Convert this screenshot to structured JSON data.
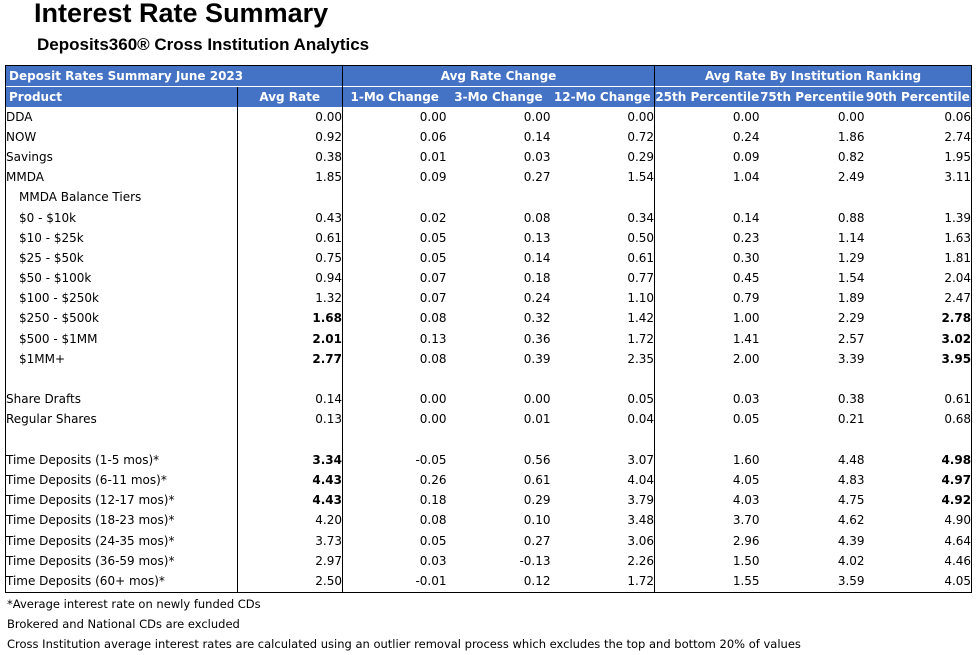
{
  "title": "Interest Rate Summary",
  "subtitle": "Deposits360® Cross Institution Analytics",
  "colors": {
    "header_bg": "#4472c4",
    "header_text": "#ffffff"
  },
  "header": {
    "group_label": "Deposit Rates Summary June 2023",
    "avg_rate_change": "Avg Rate Change",
    "avg_rate_ranking": "Avg Rate By Institution Ranking",
    "columns": [
      "Product",
      "Avg Rate",
      "1-Mo Change",
      "3-Mo Change",
      "12-Mo Change",
      "25th Percentile",
      "75th Percentile",
      "90th Percentile"
    ]
  },
  "rows": [
    {
      "label": "DDA",
      "values": [
        "0.00",
        "0.00",
        "0.00",
        "0.00",
        "0.00",
        "0.00",
        "0.06"
      ]
    },
    {
      "label": "NOW",
      "values": [
        "0.92",
        "0.06",
        "0.14",
        "0.72",
        "0.24",
        "1.86",
        "2.74"
      ]
    },
    {
      "label": "Savings",
      "values": [
        "0.38",
        "0.01",
        "0.03",
        "0.29",
        "0.09",
        "0.82",
        "1.95"
      ]
    },
    {
      "label": "MMDA",
      "values": [
        "1.85",
        "0.09",
        "0.27",
        "1.54",
        "1.04",
        "2.49",
        "3.11"
      ]
    },
    {
      "label": "MMDA Balance Tiers",
      "values": [
        "",
        "",
        "",
        "",
        "",
        "",
        ""
      ]
    },
    {
      "label": "$0 - $10k",
      "values": [
        "0.43",
        "0.02",
        "0.08",
        "0.34",
        "0.14",
        "0.88",
        "1.39"
      ]
    },
    {
      "label": "$10 - $25k",
      "values": [
        "0.61",
        "0.05",
        "0.13",
        "0.50",
        "0.23",
        "1.14",
        "1.63"
      ]
    },
    {
      "label": "$25 - $50k",
      "values": [
        "0.75",
        "0.05",
        "0.14",
        "0.61",
        "0.30",
        "1.29",
        "1.81"
      ]
    },
    {
      "label": "$50 - $100k",
      "values": [
        "0.94",
        "0.07",
        "0.18",
        "0.77",
        "0.45",
        "1.54",
        "2.04"
      ]
    },
    {
      "label": "$100 - $250k",
      "values": [
        "1.32",
        "0.07",
        "0.24",
        "1.10",
        "0.79",
        "1.89",
        "2.47"
      ]
    },
    {
      "label": "$250 - $500k",
      "values": [
        "1.68",
        "0.08",
        "0.32",
        "1.42",
        "1.00",
        "2.29",
        "2.78"
      ]
    },
    {
      "label": "$500 - $1MM",
      "values": [
        "2.01",
        "0.13",
        "0.36",
        "1.72",
        "1.41",
        "2.57",
        "3.02"
      ]
    },
    {
      "label": "$1MM+",
      "values": [
        "2.77",
        "0.08",
        "0.39",
        "2.35",
        "2.00",
        "3.39",
        "3.95"
      ]
    },
    {
      "label": "",
      "values": [
        "",
        "",
        "",
        "",
        "",
        "",
        ""
      ]
    },
    {
      "label": "Share Drafts",
      "values": [
        "0.14",
        "0.00",
        "0.00",
        "0.05",
        "0.03",
        "0.38",
        "0.61"
      ]
    },
    {
      "label": "Regular Shares",
      "values": [
        "0.13",
        "0.00",
        "0.01",
        "0.04",
        "0.05",
        "0.21",
        "0.68"
      ]
    },
    {
      "label": "",
      "values": [
        "",
        "",
        "",
        "",
        "",
        "",
        ""
      ]
    },
    {
      "label": "Time Deposits (1-5 mos)*",
      "values": [
        "3.34",
        "-0.05",
        "0.56",
        "3.07",
        "1.60",
        "4.48",
        "4.98"
      ]
    },
    {
      "label": "Time Deposits (6-11 mos)*",
      "values": [
        "4.43",
        "0.26",
        "0.61",
        "4.04",
        "4.05",
        "4.83",
        "4.97"
      ]
    },
    {
      "label": "Time Deposits (12-17 mos)*",
      "values": [
        "4.43",
        "0.18",
        "0.29",
        "3.79",
        "4.03",
        "4.75",
        "4.92"
      ]
    },
    {
      "label": "Time Deposits (18-23 mos)*",
      "values": [
        "4.20",
        "0.08",
        "0.10",
        "3.48",
        "3.70",
        "4.62",
        "4.90"
      ]
    },
    {
      "label": "Time Deposits (24-35 mos)*",
      "values": [
        "3.73",
        "0.05",
        "0.27",
        "3.06",
        "2.96",
        "4.39",
        "4.64"
      ]
    },
    {
      "label": "Time Deposits (36-59 mos)*",
      "values": [
        "2.97",
        "0.03",
        "-0.13",
        "2.26",
        "1.50",
        "4.02",
        "4.46"
      ]
    },
    {
      "label": "Time Deposits (60+ mos)*",
      "values": [
        "2.50",
        "-0.01",
        "0.12",
        "1.72",
        "1.55",
        "3.59",
        "4.05"
      ]
    }
  ],
  "notes": [
    "*Average interest rate on newly funded CDs",
    "Brokered and National CDs are excluded",
    "Cross Institution average interest rates are calculated using an outlier removal process which excludes the top and bottom 20% of values"
  ]
}
